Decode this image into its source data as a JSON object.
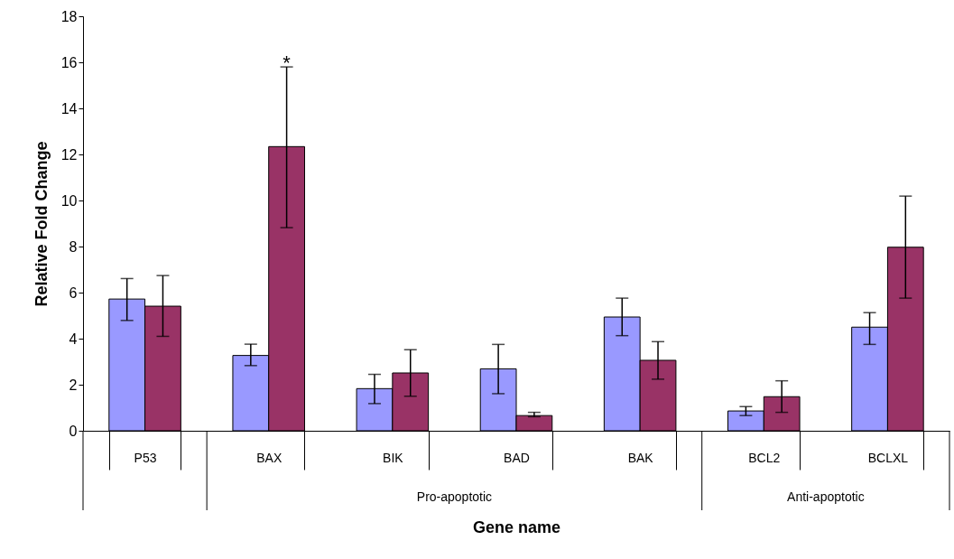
{
  "chart_data": {
    "type": "bar",
    "xlabel": "Gene name",
    "ylabel": "Relative Fold Change",
    "categories": [
      "P53",
      "BAX",
      "BIK",
      "BAD",
      "BAK",
      "BCL2",
      "BCLXL"
    ],
    "series": [
      {
        "color": "#9999ff",
        "values": [
          5.72,
          3.27,
          1.83,
          2.69,
          4.94,
          0.86,
          4.5
        ],
        "errors": [
          [
            4.79,
            6.61
          ],
          [
            2.83,
            3.76
          ],
          [
            1.18,
            2.45
          ],
          [
            1.61,
            3.75
          ],
          [
            4.13,
            5.76
          ],
          [
            0.66,
            1.05
          ],
          [
            3.75,
            5.13
          ]
        ]
      },
      {
        "color": "#993366",
        "values": [
          5.41,
          12.34,
          2.51,
          0.66,
          3.06,
          1.48,
          7.97
        ],
        "errors": [
          [
            4.1,
            6.74
          ],
          [
            8.82,
            15.8
          ],
          [
            1.5,
            3.52
          ],
          [
            0.61,
            0.8
          ],
          [
            2.24,
            3.87
          ],
          [
            0.8,
            2.17
          ],
          [
            5.76,
            10.19
          ]
        ]
      }
    ],
    "ylim": [
      0,
      18
    ],
    "yticks": [
      0,
      2,
      4,
      6,
      8,
      10,
      12,
      14,
      16,
      18
    ],
    "grid": false,
    "annotations": [
      "*",
      "Pro-apoptotic",
      "Anti-apoptotic"
    ]
  }
}
